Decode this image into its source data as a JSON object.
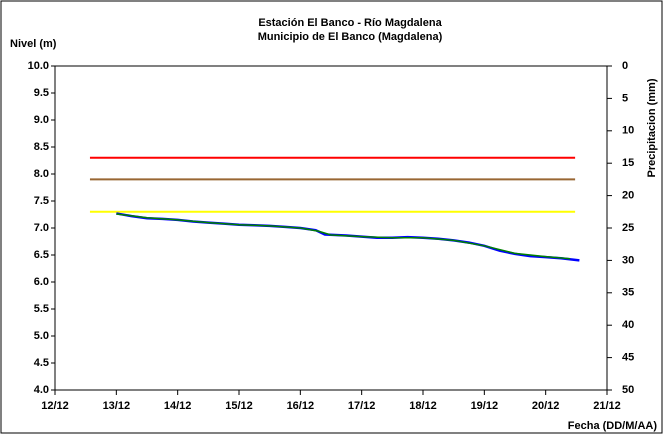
{
  "chart_data": {
    "type": "line",
    "title": [
      "Estación El Banco - Río Magdalena",
      "Municipio de El Banco (Magdalena)"
    ],
    "y_label": "Nivel (m)",
    "y2_label": "Precipitacion (mm)",
    "x_label": "Fecha (DD/M/AA)",
    "xlim": [
      12,
      21
    ],
    "xticks": [
      {
        "value": 12,
        "label": "12/12"
      },
      {
        "value": 13,
        "label": "13/12"
      },
      {
        "value": 14,
        "label": "14/12"
      },
      {
        "value": 15,
        "label": "15/12"
      },
      {
        "value": 16,
        "label": "16/12"
      },
      {
        "value": 17,
        "label": "17/12"
      },
      {
        "value": 18,
        "label": "18/12"
      },
      {
        "value": 19,
        "label": "19/12"
      },
      {
        "value": 20,
        "label": "20/12"
      },
      {
        "value": 21,
        "label": "21/12"
      }
    ],
    "ylim": [
      4,
      10
    ],
    "yticks": [
      {
        "value": 4,
        "label": "4.0"
      },
      4.5,
      {
        "value": 5,
        "label": "5.0"
      },
      5.5,
      {
        "value": 6,
        "label": "6.0"
      },
      6.5,
      {
        "value": 7,
        "label": "7.0"
      },
      7.5,
      {
        "value": 8,
        "label": "8.0"
      },
      8.5,
      {
        "value": 9,
        "label": "9.0"
      },
      9.5,
      {
        "value": 10,
        "label": "10.0"
      }
    ],
    "y2lim": [
      50,
      0
    ],
    "y2ticks": [
      0,
      5,
      10,
      15,
      20,
      25,
      30,
      35,
      40,
      45,
      50
    ],
    "reference_lines": [
      {
        "value": 8.3,
        "color": "#ff0000",
        "x": [
          12.57,
          20.48
        ]
      },
      {
        "value": 7.9,
        "color": "#996633",
        "x": [
          12.57,
          20.48
        ]
      },
      {
        "value": 7.3,
        "color": "#ffff00",
        "x": [
          12.57,
          20.48
        ]
      }
    ],
    "series": [
      {
        "color": "#0000ff",
        "x": [
          13.0,
          13.25,
          13.5,
          13.75,
          14.0,
          14.25,
          14.5,
          14.75,
          15.0,
          15.25,
          15.5,
          15.75,
          16.0,
          16.25,
          16.4,
          16.75,
          17.0,
          17.25,
          17.5,
          17.75,
          18.0,
          18.25,
          18.5,
          18.75,
          19.0,
          19.25,
          19.5,
          19.75,
          20.0,
          20.25,
          20.55
        ],
        "values": [
          7.27,
          7.22,
          7.18,
          7.17,
          7.15,
          7.12,
          7.1,
          7.08,
          7.06,
          7.05,
          7.04,
          7.02,
          7.0,
          6.96,
          6.88,
          6.86,
          6.84,
          6.82,
          6.82,
          6.83,
          6.82,
          6.8,
          6.77,
          6.73,
          6.67,
          6.58,
          6.52,
          6.48,
          6.46,
          6.44,
          6.4
        ]
      },
      {
        "color": "#008000",
        "x": [
          13.0,
          13.5,
          14.0,
          14.5,
          15.0,
          15.5,
          16.0,
          16.3,
          16.5,
          17.0,
          17.5,
          18.0,
          18.5,
          19.0,
          19.5,
          20.0,
          20.4
        ],
        "values": [
          7.26,
          7.19,
          7.15,
          7.1,
          7.06,
          7.04,
          7.0,
          6.94,
          6.87,
          6.84,
          6.82,
          6.82,
          6.77,
          6.67,
          6.53,
          6.47,
          6.43
        ]
      }
    ],
    "grid": false
  }
}
